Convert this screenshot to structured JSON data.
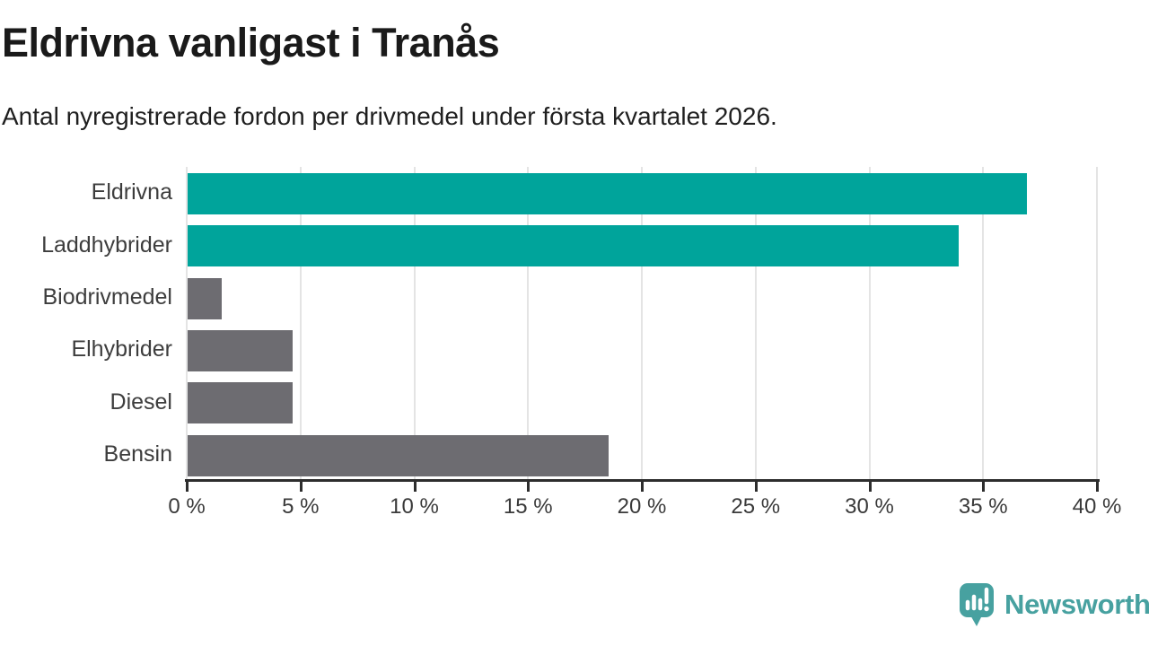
{
  "title": "Eldrivna vanligast i Tranås",
  "subtitle": "Antal nyregistrerade fordon per drivmedel under första kvartalet 2026.",
  "chart_data": {
    "type": "bar",
    "orientation": "horizontal",
    "title": "Eldrivna vanligast i Tranås",
    "subtitle": "Antal nyregistrerade fordon per drivmedel under första kvartalet 2026.",
    "categories": [
      "Eldrivna",
      "Laddhybrider",
      "Biodrivmedel",
      "Elhybrider",
      "Diesel",
      "Bensin"
    ],
    "values": [
      36.9,
      33.9,
      1.5,
      4.6,
      4.6,
      18.5
    ],
    "unit": "%",
    "xlim": [
      0,
      40
    ],
    "xticks": [
      0,
      5,
      10,
      15,
      20,
      25,
      30,
      35,
      40
    ],
    "xtick_labels": [
      "0 %",
      "5 %",
      "10 %",
      "15 %",
      "20 %",
      "25 %",
      "30 %",
      "35 %",
      "40 %"
    ],
    "grid": true,
    "legend": false,
    "highlighted_categories": [
      "Eldrivna",
      "Laddhybrider"
    ],
    "highlight_color": "#00a49b",
    "base_color": "#6d6c71",
    "bar_colors": [
      "#00a49b",
      "#00a49b",
      "#6d6c71",
      "#6d6c71",
      "#6d6c71",
      "#6d6c71"
    ]
  },
  "colors": {
    "gridline": "#e4e4e4",
    "axis": "#2d2d2d",
    "title_text": "#1a1a1a",
    "label_text": "#3d3d3d"
  },
  "branding": {
    "logo_text": "Newsworthy",
    "logo_color": "#47a1a0",
    "logo_icon": "speech-bubble-bar-chart-icon"
  }
}
